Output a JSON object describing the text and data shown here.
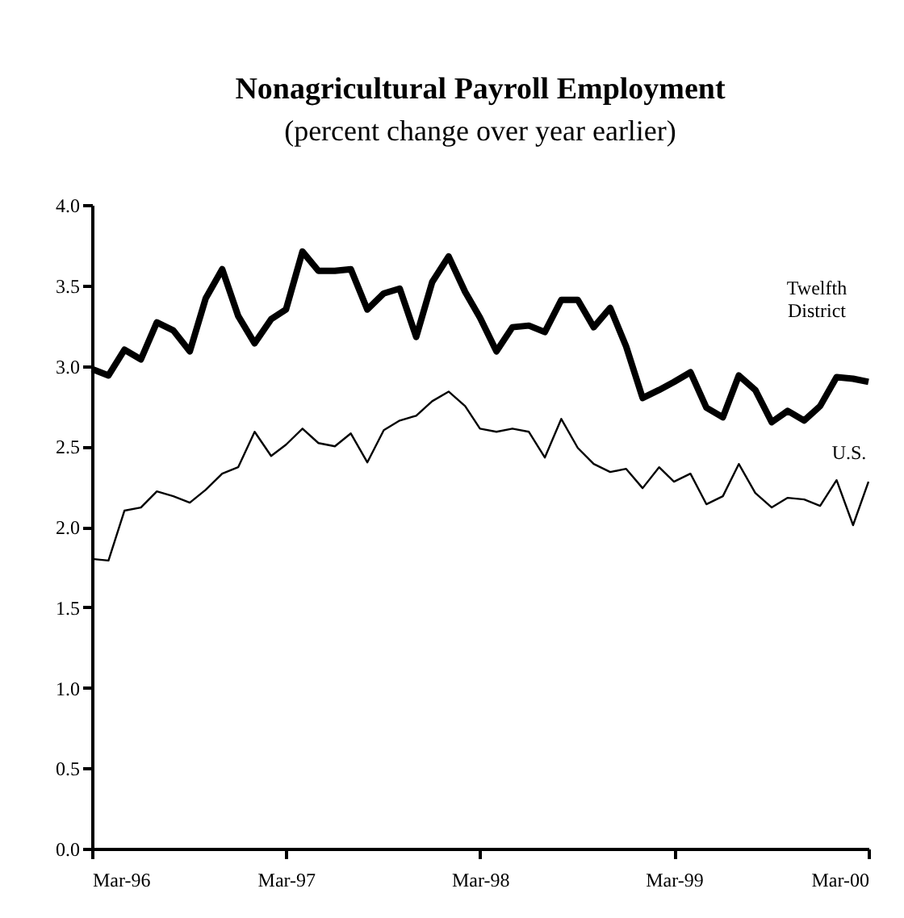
{
  "chart_data": {
    "type": "line",
    "title": "Nonagricultural Payroll Employment",
    "subtitle": "(percent change over year earlier)",
    "x": [
      "1996-03",
      "1996-04",
      "1996-05",
      "1996-06",
      "1996-07",
      "1996-08",
      "1996-09",
      "1996-10",
      "1996-11",
      "1996-12",
      "1997-01",
      "1997-02",
      "1997-03",
      "1997-04",
      "1997-05",
      "1997-06",
      "1997-07",
      "1997-08",
      "1997-09",
      "1997-10",
      "1997-11",
      "1997-12",
      "1998-01",
      "1998-02",
      "1998-03",
      "1998-04",
      "1998-05",
      "1998-06",
      "1998-07",
      "1998-08",
      "1998-09",
      "1998-10",
      "1998-11",
      "1998-12",
      "1999-01",
      "1999-02",
      "1999-03",
      "1999-04",
      "1999-05",
      "1999-06",
      "1999-07",
      "1999-08",
      "1999-09",
      "1999-10",
      "1999-11",
      "1999-12",
      "2000-01",
      "2000-02",
      "2000-03"
    ],
    "series": [
      {
        "name": "Twelfth District",
        "color": "#000000",
        "values": [
          2.98,
          2.94,
          3.1,
          3.04,
          3.27,
          3.22,
          3.09,
          3.42,
          3.6,
          3.31,
          3.14,
          3.29,
          3.35,
          3.71,
          3.59,
          3.59,
          3.6,
          3.35,
          3.45,
          3.48,
          3.18,
          3.52,
          3.68,
          3.46,
          3.3,
          3.09,
          3.24,
          3.25,
          3.21,
          3.41,
          3.41,
          3.24,
          3.36,
          3.12,
          2.8,
          2.85,
          2.9,
          2.96,
          2.74,
          2.68,
          2.94,
          2.85,
          2.65,
          2.72,
          2.66,
          2.75,
          2.93,
          2.92,
          2.9
        ]
      },
      {
        "name": "U.S.",
        "color": "#000000",
        "values": [
          1.8,
          1.79,
          2.1,
          2.12,
          2.22,
          2.19,
          2.15,
          2.23,
          2.33,
          2.37,
          2.59,
          2.44,
          2.51,
          2.61,
          2.52,
          2.5,
          2.58,
          2.4,
          2.6,
          2.66,
          2.69,
          2.78,
          2.84,
          2.75,
          2.61,
          2.59,
          2.61,
          2.59,
          2.43,
          2.67,
          2.49,
          2.39,
          2.34,
          2.36,
          2.24,
          2.37,
          2.28,
          2.33,
          2.14,
          2.19,
          2.39,
          2.21,
          2.12,
          2.18,
          2.17,
          2.13,
          2.29,
          2.01,
          2.28
        ]
      }
    ],
    "xlim": [
      "1996-03",
      "2000-03"
    ],
    "xticks": [
      {
        "value": "1996-03",
        "label": "Mar-96"
      },
      {
        "value": "1997-03",
        "label": "Mar-97"
      },
      {
        "value": "1998-03",
        "label": "Mar-98"
      },
      {
        "value": "1999-03",
        "label": "Mar-99"
      },
      {
        "value": "2000-03",
        "label": "Mar-00"
      }
    ],
    "ylim": [
      0,
      4
    ],
    "yticks": [
      {
        "value": 0,
        "label": "0.0"
      },
      {
        "value": 0.5,
        "label": "0.5"
      },
      {
        "value": 1,
        "label": "1.0"
      },
      {
        "value": 1.5,
        "label": "1.5"
      },
      {
        "value": 2,
        "label": "2.0"
      },
      {
        "value": 2.5,
        "label": "2.5"
      },
      {
        "value": 3,
        "label": "3.0"
      },
      {
        "value": 3.5,
        "label": "3.5"
      },
      {
        "value": 4,
        "label": "4.0"
      }
    ],
    "grid": false,
    "marker": "none",
    "line_style": "solid"
  }
}
